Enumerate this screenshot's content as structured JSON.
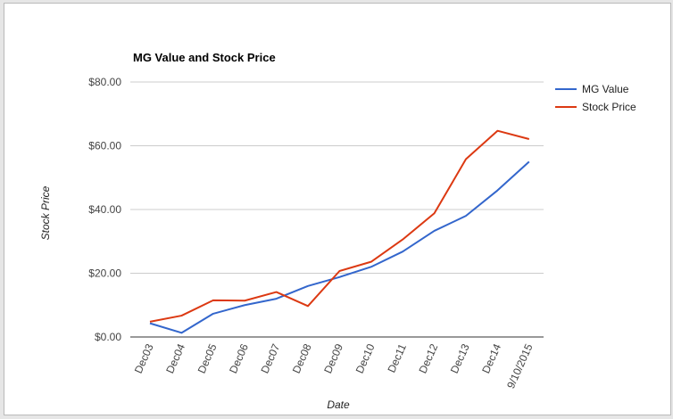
{
  "chart_data": {
    "type": "line",
    "title": "MG Value and Stock Price",
    "xlabel": "Date",
    "ylabel": "Stock Price",
    "categories": [
      "Dec03",
      "Dec04",
      "Dec05",
      "Dec06",
      "Dec07",
      "Dec08",
      "Dec09",
      "Dec10",
      "Dec11",
      "Dec12",
      "Dec13",
      "Dec14",
      "9/10/2015"
    ],
    "series": [
      {
        "name": "MG Value",
        "color": "#3366cc",
        "values": [
          4.3,
          1.3,
          7.3,
          10.0,
          12.0,
          16.0,
          18.8,
          22.0,
          26.8,
          33.3,
          38.0,
          46.0,
          55.0
        ]
      },
      {
        "name": "Stock Price",
        "color": "#dc3912",
        "values": [
          4.8,
          6.7,
          11.5,
          11.4,
          14.1,
          9.7,
          20.7,
          23.6,
          30.6,
          38.8,
          55.8,
          64.7,
          62.1
        ]
      }
    ],
    "ylim": [
      0,
      80
    ],
    "yticks": [
      "$0.00",
      "$20.00",
      "$40.00",
      "$60.00",
      "$80.00"
    ],
    "grid": true,
    "legend_position": "right"
  }
}
